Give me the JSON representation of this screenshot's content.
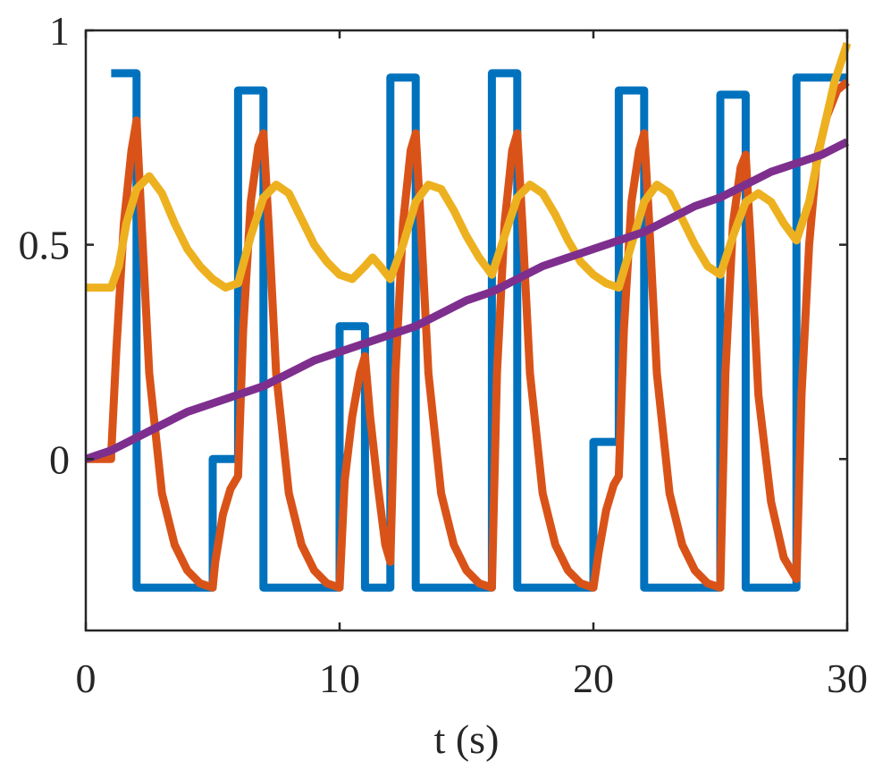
{
  "chart_data": {
    "type": "line",
    "title": "",
    "xlabel": "t (s)",
    "ylabel": "",
    "xlim": [
      0,
      30
    ],
    "ylim": [
      -0.4,
      1
    ],
    "xticks": [
      0,
      10,
      20,
      30
    ],
    "xtick_labels": [
      "0",
      "10",
      "20",
      "30"
    ],
    "yticks": [
      0,
      0.5,
      1
    ],
    "ytick_labels": [
      "0",
      "0.5",
      "1"
    ],
    "grid": false,
    "legend": "none",
    "series": [
      {
        "color": "#0072BD",
        "points": [
          [
            1,
            0.9
          ],
          [
            2,
            0.9
          ],
          [
            2,
            -0.3
          ],
          [
            5,
            -0.3
          ],
          [
            5,
            0
          ],
          [
            6,
            0
          ],
          [
            6,
            0.86
          ],
          [
            7,
            0.86
          ],
          [
            7,
            -0.3
          ],
          [
            10,
            -0.3
          ],
          [
            10,
            0.31
          ],
          [
            11,
            0.31
          ],
          [
            11,
            -0.3
          ],
          [
            12,
            -0.3
          ],
          [
            12,
            0.89
          ],
          [
            13,
            0.89
          ],
          [
            13,
            -0.3
          ],
          [
            16,
            -0.3
          ],
          [
            16,
            0.9
          ],
          [
            17,
            0.9
          ],
          [
            17,
            -0.3
          ],
          [
            20,
            -0.3
          ],
          [
            20,
            0.04
          ],
          [
            21,
            0.04
          ],
          [
            21,
            0.86
          ],
          [
            22,
            0.86
          ],
          [
            22,
            -0.3
          ],
          [
            25,
            -0.3
          ],
          [
            25,
            0.85
          ],
          [
            26,
            0.85
          ],
          [
            26,
            -0.3
          ],
          [
            28,
            -0.3
          ],
          [
            28,
            0.89
          ],
          [
            30,
            0.89
          ]
        ]
      },
      {
        "color": "#D95319",
        "points": [
          [
            0,
            0
          ],
          [
            1,
            0
          ],
          [
            1,
            0.01
          ],
          [
            1.2,
            0.25
          ],
          [
            1.5,
            0.55
          ],
          [
            1.8,
            0.72
          ],
          [
            2,
            0.79
          ],
          [
            2.2,
            0.55
          ],
          [
            2.5,
            0.2
          ],
          [
            3,
            -0.08
          ],
          [
            3.5,
            -0.2
          ],
          [
            4,
            -0.26
          ],
          [
            4.5,
            -0.29
          ],
          [
            5,
            -0.3
          ],
          [
            5.1,
            -0.24
          ],
          [
            5.4,
            -0.13
          ],
          [
            5.7,
            -0.07
          ],
          [
            6,
            -0.04
          ],
          [
            6.2,
            0.3
          ],
          [
            6.5,
            0.6
          ],
          [
            6.8,
            0.73
          ],
          [
            7,
            0.76
          ],
          [
            7.2,
            0.55
          ],
          [
            7.5,
            0.2
          ],
          [
            8,
            -0.08
          ],
          [
            8.5,
            -0.2
          ],
          [
            9,
            -0.26
          ],
          [
            9.5,
            -0.29
          ],
          [
            10,
            -0.3
          ],
          [
            10.2,
            -0.05
          ],
          [
            10.5,
            0.1
          ],
          [
            10.8,
            0.2
          ],
          [
            11,
            0.24
          ],
          [
            11.2,
            0.1
          ],
          [
            11.5,
            -0.06
          ],
          [
            11.8,
            -0.2
          ],
          [
            12,
            -0.24
          ],
          [
            12.2,
            0.2
          ],
          [
            12.5,
            0.55
          ],
          [
            12.8,
            0.72
          ],
          [
            13,
            0.76
          ],
          [
            13.2,
            0.55
          ],
          [
            13.5,
            0.2
          ],
          [
            14,
            -0.08
          ],
          [
            14.5,
            -0.2
          ],
          [
            15,
            -0.26
          ],
          [
            15.5,
            -0.29
          ],
          [
            16,
            -0.3
          ],
          [
            16.2,
            0.2
          ],
          [
            16.5,
            0.55
          ],
          [
            16.8,
            0.72
          ],
          [
            17,
            0.76
          ],
          [
            17.2,
            0.55
          ],
          [
            17.5,
            0.2
          ],
          [
            18,
            -0.08
          ],
          [
            18.5,
            -0.2
          ],
          [
            19,
            -0.26
          ],
          [
            19.5,
            -0.29
          ],
          [
            20,
            -0.3
          ],
          [
            20.2,
            -0.22
          ],
          [
            20.5,
            -0.12
          ],
          [
            20.8,
            -0.06
          ],
          [
            21,
            -0.04
          ],
          [
            21.2,
            0.3
          ],
          [
            21.5,
            0.6
          ],
          [
            21.8,
            0.72
          ],
          [
            22,
            0.76
          ],
          [
            22.2,
            0.55
          ],
          [
            22.5,
            0.2
          ],
          [
            23,
            -0.08
          ],
          [
            23.5,
            -0.2
          ],
          [
            24,
            -0.26
          ],
          [
            24.5,
            -0.29
          ],
          [
            25,
            -0.3
          ],
          [
            25.2,
            0.2
          ],
          [
            25.5,
            0.55
          ],
          [
            25.8,
            0.68
          ],
          [
            26,
            0.71
          ],
          [
            26.2,
            0.5
          ],
          [
            26.5,
            0.15
          ],
          [
            27,
            -0.1
          ],
          [
            27.5,
            -0.23
          ],
          [
            28,
            -0.28
          ],
          [
            28.2,
            0.15
          ],
          [
            28.5,
            0.5
          ],
          [
            28.8,
            0.7
          ],
          [
            29.2,
            0.8
          ],
          [
            29.6,
            0.86
          ],
          [
            30,
            0.88
          ]
        ]
      },
      {
        "color": "#EDB120",
        "points": [
          [
            0,
            0.4
          ],
          [
            1,
            0.4
          ],
          [
            1.3,
            0.45
          ],
          [
            1.6,
            0.55
          ],
          [
            2,
            0.63
          ],
          [
            2.5,
            0.66
          ],
          [
            3,
            0.62
          ],
          [
            3.5,
            0.55
          ],
          [
            4,
            0.49
          ],
          [
            4.5,
            0.45
          ],
          [
            5,
            0.42
          ],
          [
            5.5,
            0.4
          ],
          [
            6,
            0.41
          ],
          [
            6.5,
            0.52
          ],
          [
            7,
            0.61
          ],
          [
            7.5,
            0.64
          ],
          [
            8,
            0.62
          ],
          [
            8.5,
            0.56
          ],
          [
            9,
            0.5
          ],
          [
            9.5,
            0.46
          ],
          [
            10,
            0.43
          ],
          [
            10.5,
            0.42
          ],
          [
            11,
            0.45
          ],
          [
            11.3,
            0.47
          ],
          [
            11.6,
            0.45
          ],
          [
            12,
            0.42
          ],
          [
            12.5,
            0.5
          ],
          [
            13,
            0.6
          ],
          [
            13.5,
            0.64
          ],
          [
            14,
            0.63
          ],
          [
            14.5,
            0.58
          ],
          [
            15,
            0.52
          ],
          [
            15.5,
            0.47
          ],
          [
            16,
            0.43
          ],
          [
            16.5,
            0.52
          ],
          [
            17,
            0.61
          ],
          [
            17.5,
            0.64
          ],
          [
            18,
            0.62
          ],
          [
            18.5,
            0.57
          ],
          [
            19,
            0.51
          ],
          [
            19.5,
            0.46
          ],
          [
            20,
            0.43
          ],
          [
            20.5,
            0.41
          ],
          [
            21,
            0.4
          ],
          [
            21.5,
            0.5
          ],
          [
            22,
            0.6
          ],
          [
            22.5,
            0.64
          ],
          [
            23,
            0.62
          ],
          [
            23.5,
            0.56
          ],
          [
            24,
            0.5
          ],
          [
            24.5,
            0.45
          ],
          [
            25,
            0.43
          ],
          [
            25.5,
            0.52
          ],
          [
            26,
            0.6
          ],
          [
            26.5,
            0.62
          ],
          [
            27,
            0.6
          ],
          [
            27.5,
            0.55
          ],
          [
            28,
            0.51
          ],
          [
            28.5,
            0.6
          ],
          [
            29,
            0.75
          ],
          [
            29.5,
            0.88
          ],
          [
            30,
            0.97
          ]
        ]
      },
      {
        "color": "#7E2F8E",
        "points": [
          [
            0,
            0
          ],
          [
            1,
            0.02
          ],
          [
            2,
            0.05
          ],
          [
            3,
            0.08
          ],
          [
            4,
            0.11
          ],
          [
            5,
            0.13
          ],
          [
            6,
            0.15
          ],
          [
            7,
            0.17
          ],
          [
            8,
            0.2
          ],
          [
            9,
            0.23
          ],
          [
            10,
            0.25
          ],
          [
            11,
            0.27
          ],
          [
            12,
            0.29
          ],
          [
            13,
            0.31
          ],
          [
            14,
            0.34
          ],
          [
            15,
            0.37
          ],
          [
            16,
            0.39
          ],
          [
            17,
            0.42
          ],
          [
            18,
            0.45
          ],
          [
            19,
            0.47
          ],
          [
            20,
            0.49
          ],
          [
            21,
            0.51
          ],
          [
            22,
            0.53
          ],
          [
            23,
            0.56
          ],
          [
            24,
            0.59
          ],
          [
            25,
            0.61
          ],
          [
            26,
            0.64
          ],
          [
            27,
            0.67
          ],
          [
            28,
            0.69
          ],
          [
            29,
            0.71
          ],
          [
            30,
            0.74
          ]
        ]
      }
    ]
  }
}
